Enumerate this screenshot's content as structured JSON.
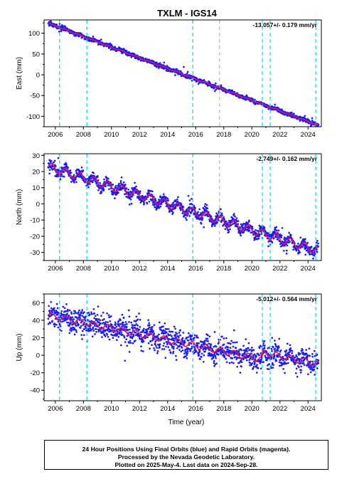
{
  "title": "TXLM - IGS14",
  "xlabel": "Time (year)",
  "x_ticks": [
    "2006",
    "2008",
    "2010",
    "2012",
    "2014",
    "2016",
    "2018",
    "2020",
    "2022",
    "2024"
  ],
  "footer": {
    "line1": "24 Hour Positions Using Final Orbits (blue) and Rapid Orbits (magenta).",
    "line2": "Processed by the Nevada Geodetic Laboratory.",
    "line3": "Plotted on 2025-May-4. Last data on 2024-Sep-28."
  },
  "colors": {
    "data_points": "#1a1aff",
    "model_fit": "#e8174a",
    "equipment_change": "#00e5ff",
    "other_event": "#bbbbbb"
  },
  "chart_data": [
    {
      "type": "scatter",
      "panel": "east",
      "ylabel": "East (mm)",
      "rate_label": "-13.057+/- 0.179 mm/yr",
      "xlim": [
        2005.2,
        2024.95
      ],
      "ylim": [
        -125,
        132
      ],
      "y_ticks": [
        -100,
        -50,
        0,
        50,
        100
      ],
      "time_span": [
        2005.5,
        2024.74
      ],
      "trend": {
        "start": 124,
        "end": -122
      },
      "seasonal_amplitude": 1.2,
      "scatter_noise": 2.5,
      "steps": [],
      "equipment_change_lines": [
        2006.3,
        2008.25,
        2015.8,
        2020.75,
        2021.3,
        2024.55
      ],
      "other_event_lines": [
        2017.7
      ]
    },
    {
      "type": "scatter",
      "panel": "north",
      "ylabel": "North (mm)",
      "rate_label": "-2.749+/- 0.162 mm/yr",
      "xlim": [
        2005.2,
        2024.95
      ],
      "ylim": [
        -35,
        31
      ],
      "y_ticks": [
        -30,
        -20,
        -10,
        0,
        10,
        20,
        30
      ],
      "time_span": [
        2005.5,
        2024.74
      ],
      "trend": {
        "start": 23,
        "end": -29
      },
      "seasonal_amplitude": 2.5,
      "scatter_noise": 1.8,
      "steps": [],
      "equipment_change_lines": [
        2006.3,
        2008.25,
        2015.8,
        2020.75,
        2021.3,
        2024.55
      ],
      "other_event_lines": [
        2017.7
      ]
    },
    {
      "type": "scatter",
      "panel": "up",
      "ylabel": "Up (mm)",
      "rate_label": "-5.012+/- 0.564 mm/yr",
      "xlim": [
        2005.2,
        2024.95
      ],
      "ylim": [
        -52,
        70
      ],
      "y_ticks": [
        -40,
        -20,
        0,
        20,
        40,
        60
      ],
      "time_span": [
        2005.5,
        2024.74
      ],
      "trend": {
        "start": 46,
        "end": -18
      },
      "seasonal_amplitude": 3.5,
      "scatter_noise": 7,
      "steps": [
        {
          "year": 2020.75,
          "offset": 8
        }
      ],
      "equipment_change_lines": [
        2006.3,
        2008.25,
        2015.8,
        2020.75,
        2021.3,
        2024.55
      ],
      "other_event_lines": [
        2017.7
      ]
    }
  ]
}
